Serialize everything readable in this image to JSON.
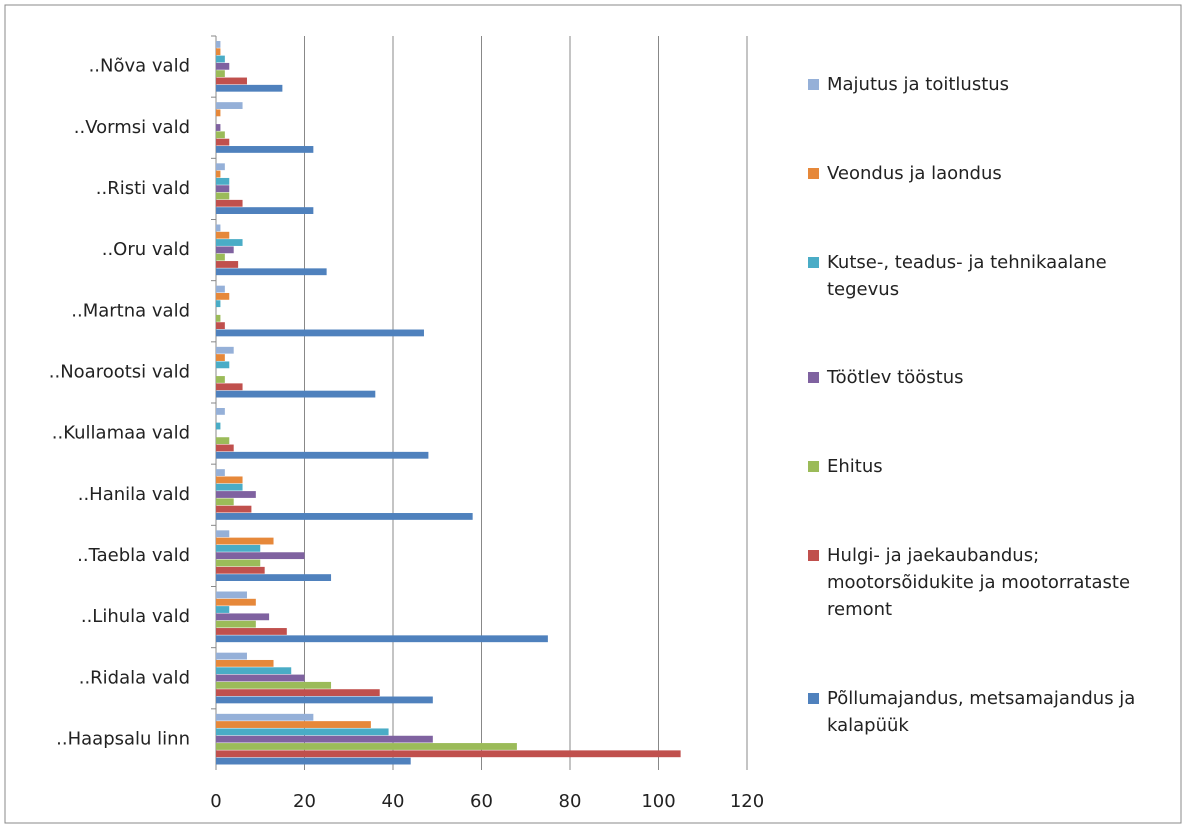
{
  "chart_data": {
    "type": "hbar",
    "categories": [
      "..Haapsalu linn",
      "..Ridala vald",
      "..Lihula vald",
      "..Taebla vald",
      "..Hanila vald",
      "..Kullamaa vald",
      "..Noarootsi vald",
      "..Martna vald",
      "..Oru vald",
      "..Risti vald",
      "..Vormsi vald",
      "..Nõva vald"
    ],
    "series": [
      {
        "name": "Majutus ja toitlustus",
        "color": "#95b0d8",
        "values": [
          22,
          7,
          7,
          3,
          2,
          2,
          4,
          2,
          1,
          2,
          6,
          1
        ]
      },
      {
        "name": "Veondus ja laondus",
        "color": "#e6883a",
        "values": [
          35,
          13,
          9,
          13,
          6,
          0,
          2,
          3,
          3,
          1,
          1,
          1
        ]
      },
      {
        "name": "Kutse-, teadus- ja tehnikaalane tegevus",
        "color": "#4aacc6",
        "values": [
          39,
          17,
          3,
          10,
          6,
          1,
          3,
          1,
          6,
          3,
          0,
          2
        ]
      },
      {
        "name": "Töötlev tööstus",
        "color": "#7f62a0",
        "values": [
          49,
          20,
          12,
          20,
          9,
          0,
          0,
          0,
          4,
          3,
          1,
          3
        ]
      },
      {
        "name": "Ehitus",
        "color": "#9bbb59",
        "values": [
          68,
          26,
          9,
          10,
          4,
          3,
          2,
          1,
          2,
          3,
          2,
          2
        ]
      },
      {
        "name": "Hulgi- ja jaekaubandus; mootorsõidukite ja mootorrataste remont",
        "color": "#c0504d",
        "values": [
          105,
          37,
          16,
          11,
          8,
          4,
          6,
          2,
          5,
          6,
          3,
          7
        ]
      },
      {
        "name": "Põllumajandus, metsamajandus ja kalapüük",
        "color": "#4f81bd",
        "values": [
          44,
          49,
          75,
          26,
          58,
          48,
          36,
          47,
          25,
          22,
          22,
          15
        ]
      }
    ],
    "xlim": [
      0,
      120
    ],
    "xticks": [
      0,
      20,
      40,
      60,
      80,
      100,
      120
    ],
    "grid": true
  }
}
